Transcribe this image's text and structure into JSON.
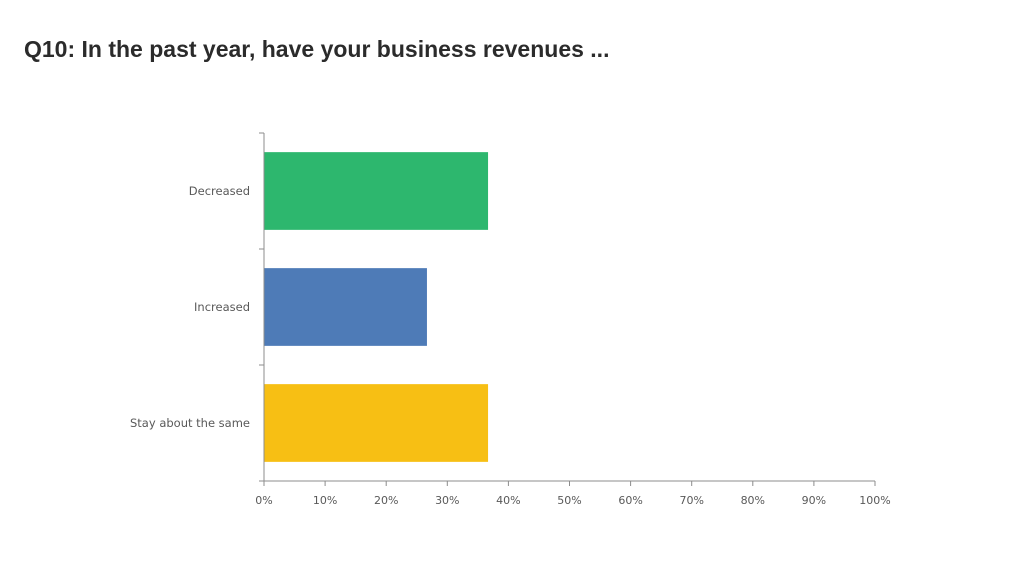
{
  "title": "Q10: In the past year, have your business revenues ...",
  "chart_data": {
    "type": "bar",
    "orientation": "horizontal",
    "categories": [
      "Decreased",
      "Increased",
      "Stay about the same"
    ],
    "values": [
      36.67,
      26.67,
      36.67
    ],
    "colors": [
      "#2db76e",
      "#4e7bb7",
      "#f7bf14"
    ],
    "xlim": [
      0,
      100
    ],
    "xticks": [
      "0%",
      "10%",
      "20%",
      "30%",
      "40%",
      "50%",
      "60%",
      "70%",
      "80%",
      "90%",
      "100%"
    ],
    "grid": false,
    "legend": "none"
  }
}
